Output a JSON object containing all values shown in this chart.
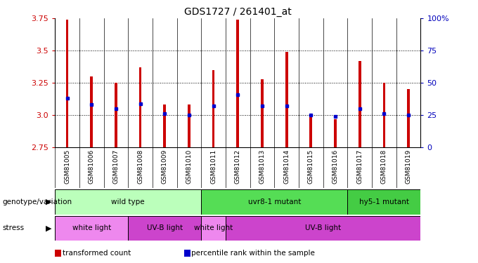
{
  "title": "GDS1727 / 261401_at",
  "samples": [
    "GSM81005",
    "GSM81006",
    "GSM81007",
    "GSM81008",
    "GSM81009",
    "GSM81010",
    "GSM81011",
    "GSM81012",
    "GSM81013",
    "GSM81014",
    "GSM81015",
    "GSM81016",
    "GSM81017",
    "GSM81018",
    "GSM81019"
  ],
  "transformed_count": [
    3.74,
    3.3,
    3.25,
    3.37,
    3.08,
    3.08,
    3.35,
    3.74,
    3.28,
    3.49,
    2.99,
    2.97,
    3.42,
    3.25,
    3.2
  ],
  "percentile_rank": [
    3.13,
    3.08,
    3.05,
    3.09,
    3.01,
    3.0,
    3.07,
    3.16,
    3.07,
    3.07,
    3.0,
    2.99,
    3.05,
    3.01,
    3.0
  ],
  "ylim_left": [
    2.75,
    3.75
  ],
  "ylim_right": [
    0,
    100
  ],
  "yticks_left": [
    2.75,
    3.0,
    3.25,
    3.5,
    3.75
  ],
  "yticks_right": [
    0,
    25,
    50,
    75,
    100
  ],
  "ytick_labels_right": [
    "0",
    "25",
    "50",
    "75",
    "100%"
  ],
  "bar_color": "#cc0000",
  "percentile_color": "#0000cc",
  "genotype_groups": [
    {
      "label": "wild type",
      "start": 0,
      "end": 6,
      "color": "#bbffbb"
    },
    {
      "label": "uvr8-1 mutant",
      "start": 6,
      "end": 12,
      "color": "#55dd55"
    },
    {
      "label": "hy5-1 mutant",
      "start": 12,
      "end": 15,
      "color": "#44cc44"
    }
  ],
  "stress_groups": [
    {
      "label": "white light",
      "start": 0,
      "end": 3,
      "color": "#ee88ee"
    },
    {
      "label": "UV-B light",
      "start": 3,
      "end": 6,
      "color": "#cc44cc"
    },
    {
      "label": "white light",
      "start": 6,
      "end": 7,
      "color": "#ee88ee"
    },
    {
      "label": "UV-B light",
      "start": 7,
      "end": 15,
      "color": "#cc44cc"
    }
  ],
  "legend_items": [
    {
      "label": "transformed count",
      "color": "#cc0000"
    },
    {
      "label": "percentile rank within the sample",
      "color": "#0000cc"
    }
  ],
  "tick_color_left": "#cc0000",
  "tick_color_right": "#0000bb",
  "label_left": "genotype/variation",
  "label_stress": "stress"
}
